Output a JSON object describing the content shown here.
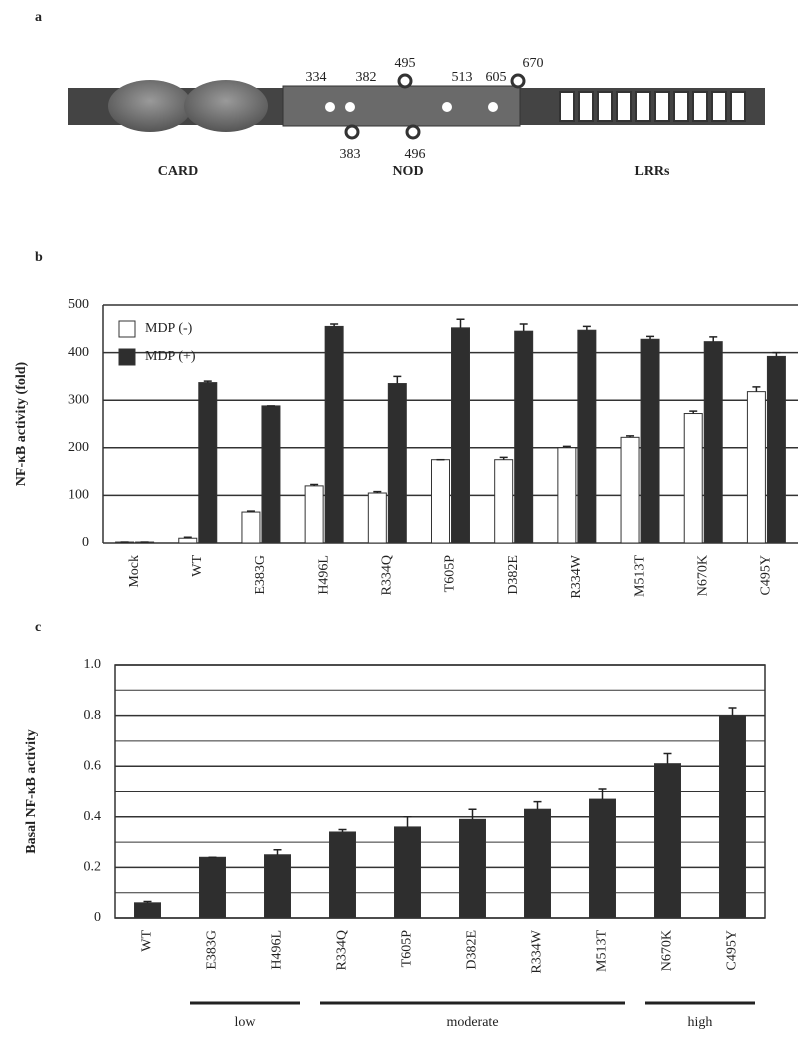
{
  "diagram": {
    "panel_label": "a",
    "sites_above": [
      "334",
      "382",
      "495",
      "513",
      "605",
      "670"
    ],
    "sites_below": [
      "383",
      "496"
    ],
    "domains": [
      "CARD",
      "NOD",
      "LRRs"
    ]
  },
  "chart_data": [
    {
      "type": "bar",
      "panel_label": "b",
      "y_label": "NF-κB activity (fold)",
      "categories": [
        "Mock",
        "WT",
        "E383G",
        "H496L",
        "R334Q",
        "T605P",
        "D382E",
        "R334W",
        "M513T",
        "N670K",
        "C495Y"
      ],
      "series": [
        {
          "name": "MDP (-)",
          "color": "#ffffff",
          "values": [
            2,
            10,
            65,
            120,
            105,
            175,
            175,
            200,
            222,
            272,
            318
          ],
          "errors": [
            0,
            2,
            2,
            3,
            3,
            0,
            5,
            3,
            3,
            5,
            10
          ]
        },
        {
          "name": "MDP (+)",
          "color": "#2e2e2e",
          "values": [
            2,
            337,
            288,
            455,
            335,
            452,
            445,
            447,
            428,
            423,
            392
          ],
          "errors": [
            0,
            3,
            0,
            5,
            15,
            18,
            15,
            8,
            6,
            10,
            8
          ]
        }
      ],
      "ylim": [
        0,
        500
      ],
      "yticks": [
        0,
        100,
        200,
        300,
        400,
        500
      ],
      "grid": true,
      "legend": "top-left"
    },
    {
      "type": "bar",
      "panel_label": "c",
      "y_label": "Basal NF-κB activity",
      "categories": [
        "WT",
        "E383G",
        "H496L",
        "R334Q",
        "T605P",
        "D382E",
        "R334W",
        "M513T",
        "N670K",
        "C495Y"
      ],
      "values": [
        0.06,
        0.24,
        0.25,
        0.34,
        0.36,
        0.39,
        0.43,
        0.47,
        0.61,
        0.8
      ],
      "errors": [
        0.005,
        0,
        0.02,
        0.01,
        0.04,
        0.04,
        0.03,
        0.04,
        0.04,
        0.03
      ],
      "color": "#2e2e2e",
      "ylim": [
        0,
        1.0
      ],
      "yticks": [
        0,
        0.2,
        0.4,
        0.6,
        0.8,
        {
          "value": 1.0,
          "label": "1.0"
        }
      ],
      "minor_yticks": [
        0.1,
        0.3,
        0.5,
        0.7,
        0.9
      ],
      "grid": true,
      "groups": [
        {
          "label": "low",
          "categories": [
            "E383G",
            "H496L"
          ]
        },
        {
          "label": "moderate",
          "categories": [
            "R334Q",
            "T605P",
            "D382E",
            "R334W",
            "M513T"
          ]
        },
        {
          "label": "high",
          "categories": [
            "N670K",
            "C495Y"
          ]
        }
      ]
    }
  ]
}
